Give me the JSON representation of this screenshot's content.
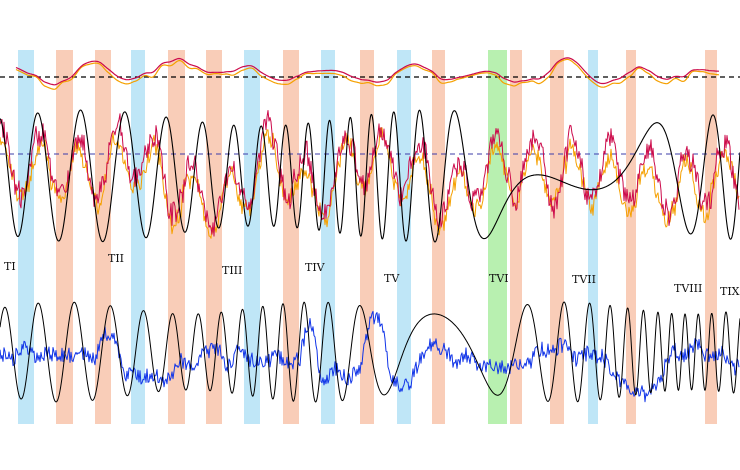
{
  "chart_data": {
    "type": "line",
    "title": "",
    "xlabel": "",
    "ylabel": "",
    "grid": false,
    "legend": "none",
    "colors": {
      "red_series": "#cc0a4a",
      "orange_series": "#f5a000",
      "blue_series": "#1034e8",
      "sine": "#000000",
      "band_blue": "#bfe6f7",
      "band_salmon": "#f9cdb8",
      "band_green": "#b8f0b0",
      "dashed_ref": "#000000",
      "dashed_ref_blue": "#3c3caa"
    },
    "markers": [
      {
        "label": "TI"
      },
      {
        "label": "TII"
      },
      {
        "label": "TIII"
      },
      {
        "label": "TIV"
      },
      {
        "label": "TV"
      },
      {
        "label": "TVI"
      },
      {
        "label": "TVII"
      },
      {
        "label": "TVIII"
      },
      {
        "label": "TIX"
      }
    ],
    "bands": [
      {
        "color": "blue"
      },
      {
        "color": "salmon"
      },
      {
        "color": "salmon"
      },
      {
        "color": "blue"
      },
      {
        "color": "salmon"
      },
      {
        "color": "salmon"
      },
      {
        "color": "blue"
      },
      {
        "color": "salmon"
      },
      {
        "color": "blue"
      },
      {
        "color": "salmon"
      },
      {
        "color": "blue"
      },
      {
        "color": "salmon"
      },
      {
        "color": "green"
      },
      {
        "color": "salmon"
      },
      {
        "color": "salmon"
      },
      {
        "color": "blue"
      },
      {
        "color": "salmon"
      },
      {
        "color": "salmon"
      }
    ],
    "series": [
      {
        "key": "top_red"
      },
      {
        "key": "top_orange"
      },
      {
        "key": "mid_red"
      },
      {
        "key": "mid_orange"
      },
      {
        "key": "mid_sine"
      },
      {
        "key": "bottom_blue"
      },
      {
        "key": "bottom_sine"
      }
    ]
  }
}
